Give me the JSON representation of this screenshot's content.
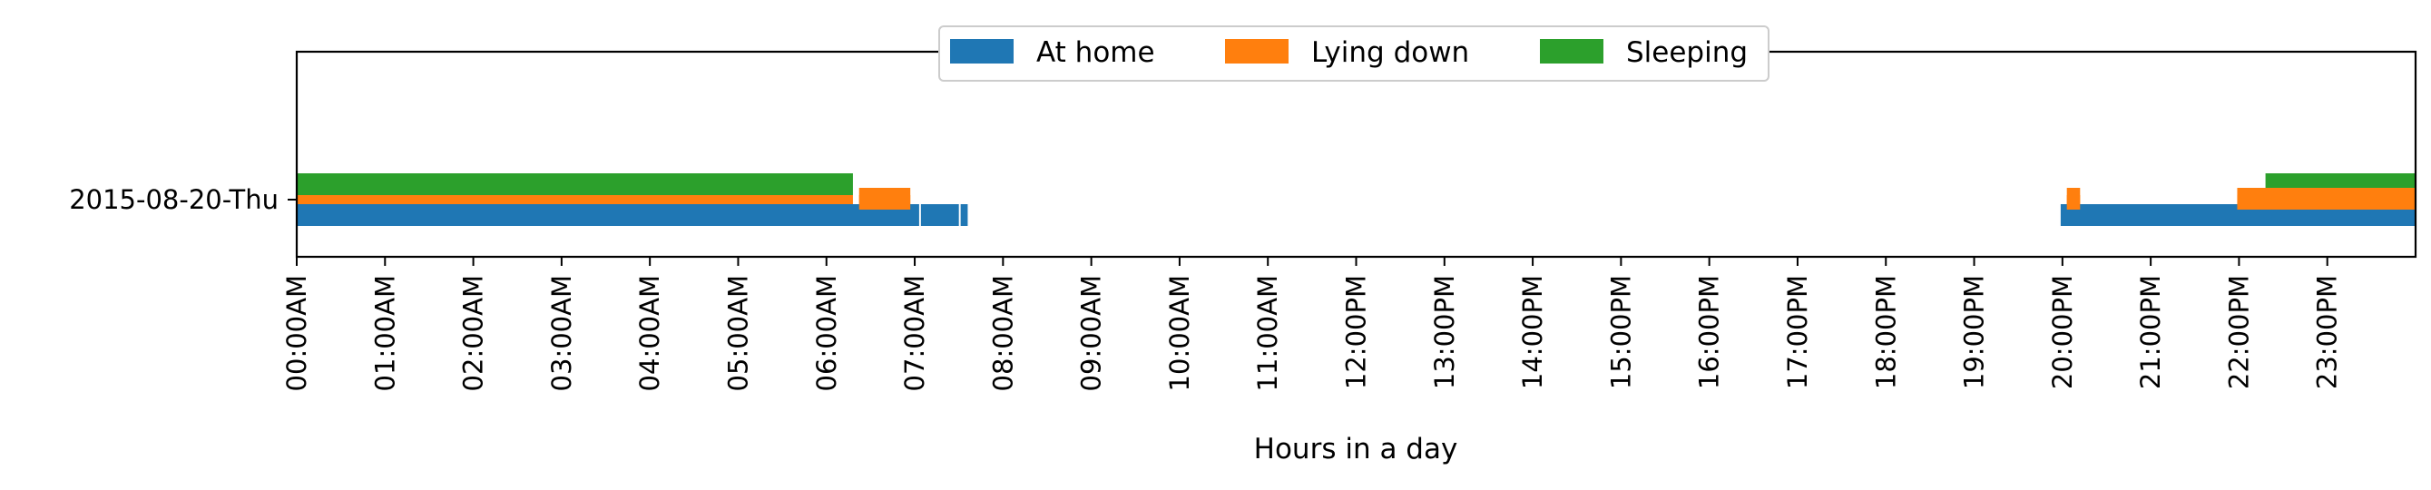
{
  "chart_data": {
    "type": "timeline",
    "xlabel": "Hours in a day",
    "xlim": [
      0,
      24
    ],
    "x_tick_labels": [
      "00:00AM",
      "01:00AM",
      "02:00AM",
      "03:00AM",
      "04:00AM",
      "05:00AM",
      "06:00AM",
      "07:00AM",
      "08:00AM",
      "09:00AM",
      "10:00AM",
      "11:00AM",
      "12:00PM",
      "13:00PM",
      "14:00PM",
      "15:00PM",
      "16:00PM",
      "17:00PM",
      "18:00PM",
      "19:00PM",
      "20:00PM",
      "21:00PM",
      "22:00PM",
      "23:00PM"
    ],
    "y_tick_labels": [
      "2015-08-20-Thu"
    ],
    "legend": {
      "placement": "upper-center",
      "ncol": 3
    },
    "series": [
      {
        "name": "At home",
        "color": "#1f77b4",
        "intervals": [
          [
            0.0,
            7.05
          ],
          [
            7.07,
            7.5
          ],
          [
            7.52,
            7.6
          ],
          [
            19.98,
            24.0
          ]
        ]
      },
      {
        "name": "Lying down",
        "color": "#ff7f0e",
        "intervals": [
          [
            0.0,
            6.3
          ],
          [
            6.37,
            6.95
          ],
          [
            20.05,
            20.2
          ],
          [
            21.98,
            24.0
          ]
        ]
      },
      {
        "name": "Sleeping",
        "color": "#2ca02c",
        "intervals": [
          [
            0.0,
            6.3
          ],
          [
            22.3,
            24.0
          ]
        ]
      }
    ]
  }
}
